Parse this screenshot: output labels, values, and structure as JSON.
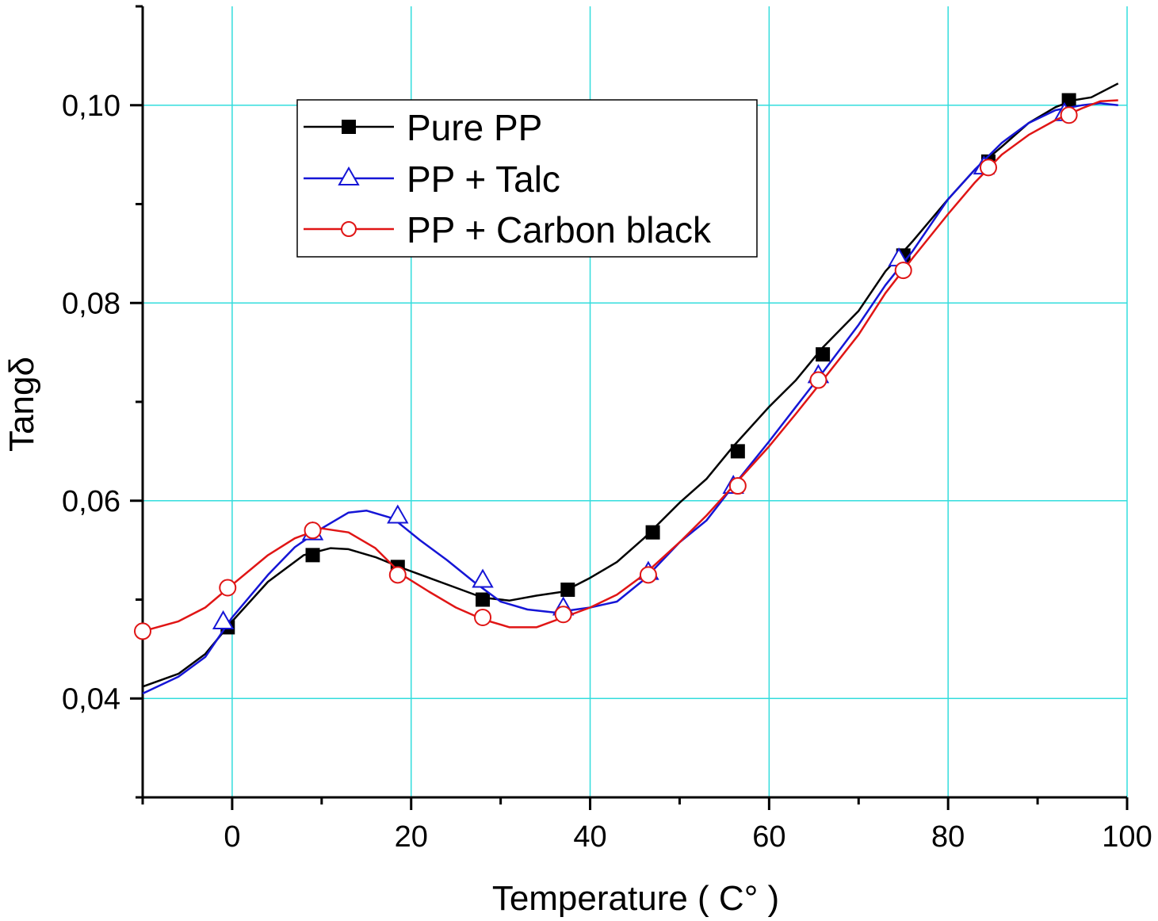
{
  "chart_data": {
    "type": "line",
    "title": "",
    "xlabel": "Temperature ( C° )",
    "ylabel": "Tangδ",
    "xlim": [
      -10,
      100
    ],
    "ylim": [
      0.03,
      0.11
    ],
    "x_ticks": [
      0,
      20,
      40,
      60,
      80,
      100
    ],
    "x_tick_labels": [
      "0",
      "20",
      "40",
      "60",
      "80",
      "100"
    ],
    "y_ticks": [
      0.04,
      0.06,
      0.08,
      0.1
    ],
    "y_tick_labels": [
      "0,04",
      "0,06",
      "0,08",
      "0,10"
    ],
    "grid": true,
    "grid_color": "#33dddd",
    "legend_position": "top-left",
    "series": [
      {
        "name": "Pure PP",
        "color": "#000000",
        "marker": "filled-square",
        "line": [
          [
            -10,
            0.0412
          ],
          [
            -6,
            0.0425
          ],
          [
            -3,
            0.0445
          ],
          [
            0,
            0.0478
          ],
          [
            4,
            0.0518
          ],
          [
            8,
            0.0545
          ],
          [
            11,
            0.0552
          ],
          [
            13,
            0.0551
          ],
          [
            16,
            0.0543
          ],
          [
            19,
            0.0532
          ],
          [
            22,
            0.0522
          ],
          [
            25,
            0.0512
          ],
          [
            28,
            0.0502
          ],
          [
            31,
            0.0499
          ],
          [
            34,
            0.0504
          ],
          [
            37,
            0.0508
          ],
          [
            40,
            0.0522
          ],
          [
            43,
            0.0538
          ],
          [
            46,
            0.0562
          ],
          [
            50,
            0.0598
          ],
          [
            53,
            0.0622
          ],
          [
            56,
            0.0655
          ],
          [
            60,
            0.0695
          ],
          [
            63,
            0.0722
          ],
          [
            66,
            0.0755
          ],
          [
            70,
            0.0792
          ],
          [
            73,
            0.0832
          ],
          [
            76,
            0.0862
          ],
          [
            80,
            0.0905
          ],
          [
            83,
            0.0935
          ],
          [
            86,
            0.0958
          ],
          [
            89,
            0.0982
          ],
          [
            92,
            0.0998
          ],
          [
            94,
            0.1005
          ],
          [
            96,
            0.1008
          ],
          [
            99,
            0.1022
          ]
        ],
        "markers": [
          [
            -0.5,
            0.0472
          ],
          [
            9,
            0.0545
          ],
          [
            18.5,
            0.0533
          ],
          [
            28,
            0.05
          ],
          [
            37.5,
            0.051
          ],
          [
            47,
            0.0568
          ],
          [
            56.5,
            0.065
          ],
          [
            66,
            0.0748
          ],
          [
            75,
            0.0848
          ],
          [
            84.5,
            0.0943
          ],
          [
            93.5,
            0.1005
          ]
        ]
      },
      {
        "name": "PP + Talc",
        "color": "#1515d6",
        "marker": "open-triangle",
        "line": [
          [
            -10,
            0.0405
          ],
          [
            -6,
            0.0422
          ],
          [
            -3,
            0.0442
          ],
          [
            0,
            0.0482
          ],
          [
            4,
            0.0525
          ],
          [
            7,
            0.0553
          ],
          [
            10,
            0.0572
          ],
          [
            13,
            0.0588
          ],
          [
            15,
            0.059
          ],
          [
            18,
            0.0582
          ],
          [
            21,
            0.056
          ],
          [
            24,
            0.054
          ],
          [
            27,
            0.0518
          ],
          [
            30,
            0.0498
          ],
          [
            33,
            0.049
          ],
          [
            36,
            0.0487
          ],
          [
            40,
            0.0492
          ],
          [
            43,
            0.0498
          ],
          [
            46,
            0.052
          ],
          [
            50,
            0.0558
          ],
          [
            53,
            0.058
          ],
          [
            56,
            0.0615
          ],
          [
            60,
            0.066
          ],
          [
            63,
            0.0695
          ],
          [
            66,
            0.073
          ],
          [
            70,
            0.0778
          ],
          [
            73,
            0.0818
          ],
          [
            76,
            0.0852
          ],
          [
            80,
            0.0905
          ],
          [
            83,
            0.0935
          ],
          [
            86,
            0.0962
          ],
          [
            89,
            0.0982
          ],
          [
            92,
            0.0995
          ],
          [
            95,
            0.1
          ],
          [
            97,
            0.1002
          ],
          [
            99,
            0.1
          ]
        ],
        "markers": [
          [
            -1,
            0.0478
          ],
          [
            9,
            0.0568
          ],
          [
            18.5,
            0.0585
          ],
          [
            28,
            0.052
          ],
          [
            37,
            0.0492
          ],
          [
            46.5,
            0.0528
          ],
          [
            56,
            0.0615
          ],
          [
            65.5,
            0.0727
          ],
          [
            74.5,
            0.0845
          ],
          [
            84,
            0.0938
          ],
          [
            93,
            0.0992
          ]
        ]
      },
      {
        "name": "PP + Carbon black",
        "color": "#e01515",
        "marker": "open-circle",
        "line": [
          [
            -10,
            0.0468
          ],
          [
            -6,
            0.0478
          ],
          [
            -3,
            0.0492
          ],
          [
            0,
            0.0515
          ],
          [
            4,
            0.0545
          ],
          [
            7,
            0.0562
          ],
          [
            10,
            0.0572
          ],
          [
            13,
            0.0568
          ],
          [
            16,
            0.0552
          ],
          [
            19,
            0.0525
          ],
          [
            22,
            0.0508
          ],
          [
            25,
            0.0492
          ],
          [
            28,
            0.048
          ],
          [
            31,
            0.0472
          ],
          [
            34,
            0.0472
          ],
          [
            37,
            0.0482
          ],
          [
            40,
            0.0492
          ],
          [
            43,
            0.0505
          ],
          [
            46,
            0.0525
          ],
          [
            50,
            0.0558
          ],
          [
            53,
            0.0585
          ],
          [
            56,
            0.0615
          ],
          [
            60,
            0.0655
          ],
          [
            63,
            0.0688
          ],
          [
            66,
            0.0722
          ],
          [
            70,
            0.0768
          ],
          [
            73,
            0.081
          ],
          [
            76,
            0.0845
          ],
          [
            80,
            0.089
          ],
          [
            83,
            0.0922
          ],
          [
            86,
            0.095
          ],
          [
            89,
            0.097
          ],
          [
            92,
            0.0985
          ],
          [
            95,
            0.0997
          ],
          [
            97,
            0.1004
          ],
          [
            99,
            0.1005
          ]
        ],
        "markers": [
          [
            -10,
            0.0468
          ],
          [
            -0.5,
            0.0512
          ],
          [
            9,
            0.057
          ],
          [
            18.5,
            0.0525
          ],
          [
            28,
            0.0482
          ],
          [
            37,
            0.0485
          ],
          [
            46.5,
            0.0525
          ],
          [
            56.5,
            0.0615
          ],
          [
            65.5,
            0.0722
          ],
          [
            75,
            0.0833
          ],
          [
            84.5,
            0.0937
          ],
          [
            93.5,
            0.099
          ]
        ]
      }
    ]
  }
}
